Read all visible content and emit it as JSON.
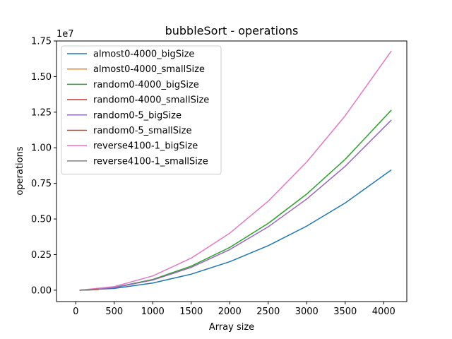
{
  "chart_data": {
    "type": "line",
    "title": "bubbleSort - operations",
    "xlabel": "Array size",
    "ylabel": "operations",
    "y_multiplier_label": "1e7",
    "y_multiplier": 10000000,
    "xlim": [
      -250,
      4300
    ],
    "ylim": [
      -800000,
      17500000
    ],
    "x_ticks": [
      0,
      500,
      1000,
      1500,
      2000,
      2500,
      3000,
      3500,
      4000
    ],
    "x_tick_labels": [
      "0",
      "500",
      "1000",
      "1500",
      "2000",
      "2500",
      "3000",
      "3500",
      "4000"
    ],
    "y_ticks": [
      0,
      2500000,
      5000000,
      7500000,
      10000000,
      12500000,
      15000000,
      17500000
    ],
    "y_tick_labels": [
      "0.00",
      "0.25",
      "0.50",
      "0.75",
      "1.00",
      "1.25",
      "1.50",
      "1.75"
    ],
    "grid": false,
    "legend_position": "top-left",
    "series": [
      {
        "name": "almost0-4000_bigSize",
        "color": "#1f77b4",
        "x": [
          50,
          500,
          1000,
          1500,
          2000,
          2500,
          3000,
          3500,
          4100
        ],
        "values": [
          1000,
          125000,
          500000,
          1125000,
          2000000,
          3125000,
          4500000,
          6125000,
          8450000
        ]
      },
      {
        "name": "almost0-4000_smallSize",
        "color": "#ff7f0e",
        "x": [
          50,
          100,
          150,
          200,
          250,
          300
        ],
        "values": [
          1000,
          5000,
          11000,
          20000,
          31000,
          45000
        ]
      },
      {
        "name": "random0-4000_bigSize",
        "color": "#2ca02c",
        "x": [
          50,
          500,
          1000,
          1500,
          2000,
          2500,
          3000,
          3500,
          4100
        ],
        "values": [
          2000,
          190000,
          750000,
          1690000,
          3000000,
          4690000,
          6750000,
          9190000,
          12650000
        ]
      },
      {
        "name": "random0-4000_smallSize",
        "color": "#d62728",
        "x": [
          50,
          100,
          150,
          200,
          250,
          300
        ],
        "values": [
          2000,
          7000,
          17000,
          30000,
          47000,
          68000
        ]
      },
      {
        "name": "random0-5_bigSize",
        "color": "#9467bd",
        "x": [
          50,
          500,
          1000,
          1500,
          2000,
          2500,
          3000,
          3500,
          4100
        ],
        "values": [
          2000,
          178000,
          710000,
          1600000,
          2850000,
          4450000,
          6400000,
          8700000,
          11950000
        ]
      },
      {
        "name": "random0-5_smallSize",
        "color": "#8c564b",
        "x": [
          50,
          100,
          150,
          200,
          250,
          300
        ],
        "values": [
          2000,
          7000,
          16000,
          28000,
          45000,
          64000
        ]
      },
      {
        "name": "reverse4100-1_bigSize",
        "color": "#e377c2",
        "x": [
          50,
          500,
          1000,
          1500,
          2000,
          2500,
          3000,
          3500,
          4100
        ],
        "values": [
          2500,
          250000,
          1000000,
          2250000,
          4000000,
          6250000,
          9000000,
          12250000,
          16800000
        ]
      },
      {
        "name": "reverse4100-1_smallSize",
        "color": "#7f7f7f",
        "x": [
          50,
          100,
          150,
          200,
          250,
          300
        ],
        "values": [
          2500,
          10000,
          22000,
          40000,
          62000,
          90000
        ]
      }
    ]
  }
}
